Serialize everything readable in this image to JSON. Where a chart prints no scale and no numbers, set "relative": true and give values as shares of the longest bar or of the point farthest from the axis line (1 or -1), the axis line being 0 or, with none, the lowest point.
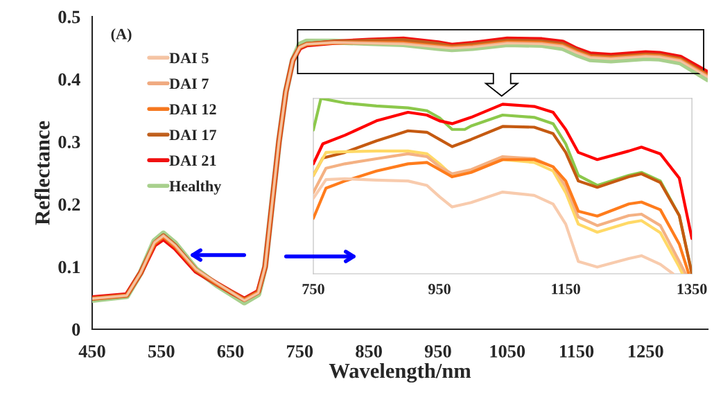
{
  "chart_data": [
    {
      "type": "line",
      "xlabel": "Wavelength/nm",
      "ylabel": "Reflectance",
      "annotations": [
        "(A)"
      ],
      "xlim": [
        450,
        1340
      ],
      "xticks": [
        450,
        550,
        650,
        750,
        850,
        950,
        1050,
        1150,
        1250
      ],
      "ylim": [
        0,
        0.5
      ],
      "yticks": [
        0,
        0.1,
        0.2,
        0.3,
        0.4,
        0.5
      ],
      "legend": "top left",
      "grid": false,
      "marker": "none",
      "line_style": "solid",
      "x": [
        450,
        500,
        520,
        540,
        553,
        570,
        600,
        630,
        650,
        670,
        690,
        700,
        710,
        720,
        730,
        740,
        750,
        760,
        800,
        850,
        900,
        950,
        970,
        1000,
        1050,
        1100,
        1130,
        1150,
        1170,
        1200,
        1250,
        1270,
        1300,
        1340
      ],
      "series": [
        {
          "name": "DAI 5",
          "color": "#f5c4a4",
          "values": [
            0.049,
            0.054,
            0.09,
            0.138,
            0.149,
            0.134,
            0.096,
            0.074,
            0.06,
            0.046,
            0.058,
            0.1,
            0.2,
            0.3,
            0.38,
            0.43,
            0.451,
            0.456,
            0.458,
            0.457,
            0.456,
            0.451,
            0.449,
            0.451,
            0.457,
            0.456,
            0.452,
            0.442,
            0.434,
            0.432,
            0.436,
            0.435,
            0.429,
            0.403
          ]
        },
        {
          "name": "DAI 7",
          "color": "#f0aa80",
          "values": [
            0.049,
            0.054,
            0.09,
            0.139,
            0.15,
            0.134,
            0.096,
            0.074,
            0.06,
            0.046,
            0.058,
            0.1,
            0.2,
            0.3,
            0.38,
            0.43,
            0.451,
            0.456,
            0.459,
            0.458,
            0.457,
            0.452,
            0.45,
            0.452,
            0.458,
            0.457,
            0.453,
            0.443,
            0.435,
            0.433,
            0.437,
            0.436,
            0.43,
            0.404
          ]
        },
        {
          "name": "DAI 12",
          "color": "#f57820",
          "values": [
            0.049,
            0.054,
            0.09,
            0.137,
            0.148,
            0.132,
            0.095,
            0.073,
            0.06,
            0.047,
            0.059,
            0.1,
            0.2,
            0.3,
            0.38,
            0.43,
            0.451,
            0.456,
            0.458,
            0.458,
            0.458,
            0.453,
            0.451,
            0.453,
            0.459,
            0.458,
            0.454,
            0.444,
            0.436,
            0.434,
            0.438,
            0.437,
            0.431,
            0.405
          ]
        },
        {
          "name": "DAI 17",
          "color": "#c0601e",
          "values": [
            0.049,
            0.054,
            0.09,
            0.138,
            0.15,
            0.134,
            0.095,
            0.073,
            0.06,
            0.047,
            0.059,
            0.1,
            0.2,
            0.3,
            0.38,
            0.43,
            0.451,
            0.456,
            0.459,
            0.461,
            0.462,
            0.456,
            0.452,
            0.455,
            0.461,
            0.46,
            0.456,
            0.446,
            0.437,
            0.435,
            0.439,
            0.438,
            0.432,
            0.406
          ]
        },
        {
          "name": "DAI 21",
          "color": "#f01010",
          "values": [
            0.05,
            0.055,
            0.09,
            0.135,
            0.145,
            0.13,
            0.093,
            0.073,
            0.06,
            0.048,
            0.06,
            0.1,
            0.2,
            0.3,
            0.38,
            0.43,
            0.45,
            0.455,
            0.459,
            0.462,
            0.464,
            0.458,
            0.454,
            0.457,
            0.464,
            0.463,
            0.459,
            0.448,
            0.44,
            0.438,
            0.442,
            0.441,
            0.435,
            0.41
          ]
        },
        {
          "name": "Healthy",
          "color": "#a8d08d",
          "values": [
            0.047,
            0.053,
            0.09,
            0.141,
            0.153,
            0.137,
            0.096,
            0.071,
            0.057,
            0.043,
            0.056,
            0.1,
            0.2,
            0.3,
            0.38,
            0.43,
            0.455,
            0.46,
            0.46,
            0.458,
            0.456,
            0.45,
            0.448,
            0.45,
            0.456,
            0.455,
            0.45,
            0.44,
            0.432,
            0.43,
            0.434,
            0.433,
            0.427,
            0.4
          ]
        }
      ]
    },
    {
      "type": "line",
      "relative": true,
      "xlim": [
        750,
        1350
      ],
      "xticks": [
        750,
        950,
        1150,
        1350
      ],
      "tick_labels": "x",
      "grid": false,
      "marker": "none",
      "line_style": "solid",
      "series": [
        {
          "color": "#8cc84b",
          "x": [
            750,
            762,
            800,
            850,
            900,
            930,
            950,
            970,
            990,
            1000,
            1050,
            1100,
            1130,
            1150,
            1170,
            1200,
            1250,
            1270,
            1300,
            1330,
            1350
          ],
          "values": [
            0.82,
            1.0,
            0.974,
            0.957,
            0.946,
            0.93,
            0.889,
            0.823,
            0.823,
            0.843,
            0.905,
            0.892,
            0.856,
            0.741,
            0.561,
            0.504,
            0.561,
            0.578,
            0.529,
            0.332,
            0
          ]
        },
        {
          "color": "#ff0000",
          "x": [
            750,
            765,
            800,
            850,
            900,
            930,
            950,
            970,
            1000,
            1050,
            1100,
            1130,
            1150,
            1170,
            1200,
            1250,
            1270,
            1300,
            1330,
            1350
          ],
          "values": [
            0.627,
            0.741,
            0.79,
            0.872,
            0.921,
            0.905,
            0.872,
            0.856,
            0.892,
            0.967,
            0.954,
            0.921,
            0.823,
            0.692,
            0.651,
            0.7,
            0.722,
            0.684,
            0.545,
            0.201
          ]
        },
        {
          "color": "#c55a11",
          "x": [
            750,
            765,
            800,
            850,
            900,
            930,
            950,
            970,
            1000,
            1050,
            1100,
            1130,
            1150,
            1170,
            1200,
            1250,
            1270,
            1300,
            1330,
            1350
          ],
          "values": [
            0.561,
            0.66,
            0.692,
            0.758,
            0.815,
            0.807,
            0.766,
            0.725,
            0.766,
            0.84,
            0.836,
            0.799,
            0.692,
            0.529,
            0.493,
            0.553,
            0.57,
            0.52,
            0.332,
            0
          ]
        },
        {
          "color": "#ffd966",
          "x": [
            750,
            770,
            800,
            850,
            900,
            930,
            950,
            970,
            1000,
            1050,
            1100,
            1130,
            1150,
            1170,
            1200,
            1250,
            1270,
            1300,
            1330,
            1335
          ],
          "values": [
            0.561,
            0.692,
            0.696,
            0.7,
            0.7,
            0.684,
            0.627,
            0.561,
            0.586,
            0.651,
            0.635,
            0.586,
            0.463,
            0.283,
            0.237,
            0.291,
            0.303,
            0.234,
            0.038,
            0
          ]
        },
        {
          "color": "#f4b183",
          "x": [
            750,
            770,
            800,
            850,
            900,
            930,
            950,
            970,
            1000,
            1050,
            1100,
            1130,
            1150,
            1170,
            1200,
            1250,
            1270,
            1300,
            1330,
            1340
          ],
          "values": [
            0.463,
            0.602,
            0.627,
            0.656,
            0.684,
            0.668,
            0.61,
            0.57,
            0.594,
            0.668,
            0.656,
            0.61,
            0.496,
            0.324,
            0.275,
            0.332,
            0.34,
            0.275,
            0.07,
            0
          ]
        },
        {
          "color": "#ff7c1c",
          "x": [
            750,
            770,
            800,
            850,
            900,
            930,
            950,
            970,
            1000,
            1050,
            1100,
            1130,
            1150,
            1170,
            1200,
            1250,
            1270,
            1300,
            1330,
            1345
          ],
          "values": [
            0.316,
            0.488,
            0.529,
            0.586,
            0.627,
            0.635,
            0.594,
            0.553,
            0.578,
            0.651,
            0.651,
            0.61,
            0.529,
            0.357,
            0.329,
            0.398,
            0.409,
            0.365,
            0.169,
            0
          ]
        },
        {
          "color": "#f8cbad",
          "x": [
            750,
            770,
            800,
            850,
            900,
            930,
            950,
            970,
            1000,
            1050,
            1100,
            1130,
            1150,
            1170,
            1200,
            1250,
            1270,
            1300,
            1320
          ],
          "values": [
            0.43,
            0.537,
            0.542,
            0.534,
            0.529,
            0.504,
            0.439,
            0.381,
            0.406,
            0.466,
            0.447,
            0.398,
            0.283,
            0.07,
            0.038,
            0.087,
            0.103,
            0.054,
            0
          ]
        }
      ]
    }
  ]
}
